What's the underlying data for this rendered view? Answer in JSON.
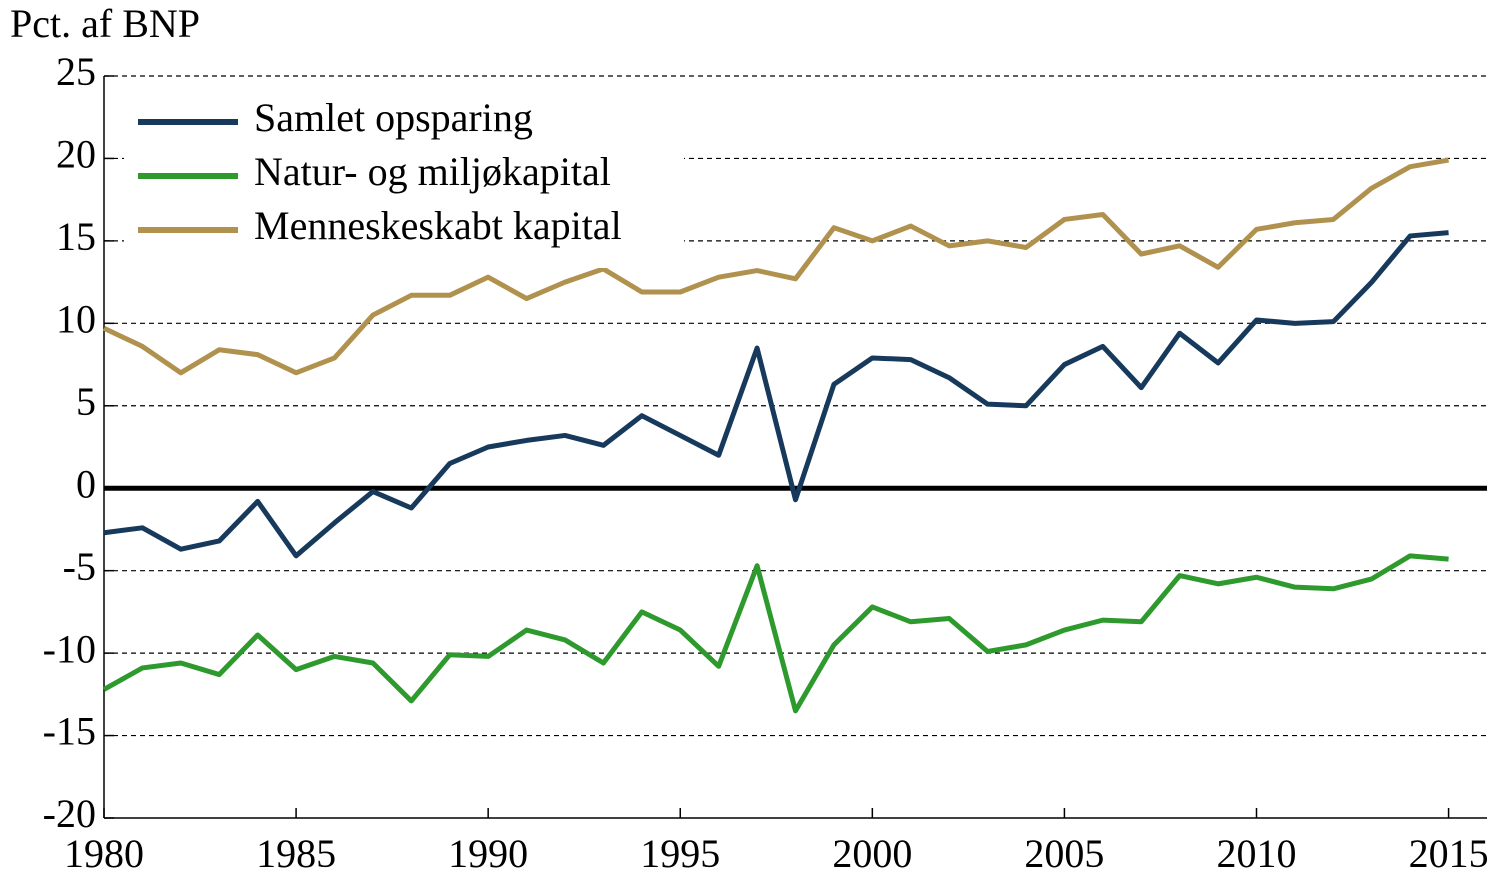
{
  "chart_data": {
    "type": "line",
    "ylabel": "Pct. af BNP",
    "x": [
      1980,
      1981,
      1982,
      1983,
      1984,
      1985,
      1986,
      1987,
      1988,
      1989,
      1990,
      1991,
      1992,
      1993,
      1994,
      1995,
      1996,
      1997,
      1998,
      1999,
      2000,
      2001,
      2002,
      2003,
      2004,
      2005,
      2006,
      2007,
      2008,
      2009,
      2010,
      2011,
      2012,
      2013,
      2014,
      2015
    ],
    "series": [
      {
        "name": "Samlet opsparing",
        "color": "#173a5c",
        "values": [
          -2.7,
          -2.4,
          -3.7,
          -3.2,
          -0.8,
          -4.1,
          -2.1,
          -0.2,
          -1.2,
          1.5,
          2.5,
          2.9,
          3.2,
          2.6,
          4.4,
          3.2,
          2.0,
          8.5,
          -0.7,
          6.3,
          7.9,
          7.8,
          6.7,
          5.1,
          5.0,
          7.5,
          8.6,
          6.1,
          9.4,
          7.6,
          10.2,
          10.0,
          10.1,
          12.5,
          15.3,
          15.5
        ]
      },
      {
        "name": "Natur- og miljøkapital",
        "color": "#2e9a2e",
        "values": [
          -12.2,
          -10.9,
          -10.6,
          -11.3,
          -8.9,
          -11.0,
          -10.2,
          -10.6,
          -12.9,
          -10.1,
          -10.2,
          -8.6,
          -9.2,
          -10.6,
          -7.5,
          -8.6,
          -10.8,
          -4.7,
          -13.5,
          -9.5,
          -7.2,
          -8.1,
          -7.9,
          -9.9,
          -9.5,
          -8.6,
          -8.0,
          -8.1,
          -5.3,
          -5.8,
          -5.4,
          -6.0,
          -6.1,
          -5.5,
          -4.1,
          -4.3
        ]
      },
      {
        "name": "Menneskeskabt kapital",
        "color": "#b0924e",
        "values": [
          9.7,
          8.6,
          7.0,
          8.4,
          8.1,
          7.0,
          7.9,
          10.5,
          11.7,
          11.7,
          12.8,
          11.5,
          12.5,
          13.3,
          11.9,
          11.9,
          12.8,
          13.2,
          12.7,
          15.8,
          15.0,
          15.9,
          14.7,
          15.0,
          14.6,
          16.3,
          16.6,
          14.2,
          14.7,
          13.4,
          15.7,
          16.1,
          16.3,
          18.2,
          19.5,
          19.9
        ]
      }
    ],
    "xlim": [
      1980,
      2016
    ],
    "xticks": [
      1980,
      1985,
      1990,
      1995,
      2000,
      2005,
      2010,
      2015
    ],
    "ylim": [
      -20,
      25
    ],
    "yticks": [
      -20,
      -15,
      -10,
      -5,
      0,
      5,
      10,
      15,
      20,
      25
    ],
    "grid": true,
    "legend": "upper left"
  }
}
